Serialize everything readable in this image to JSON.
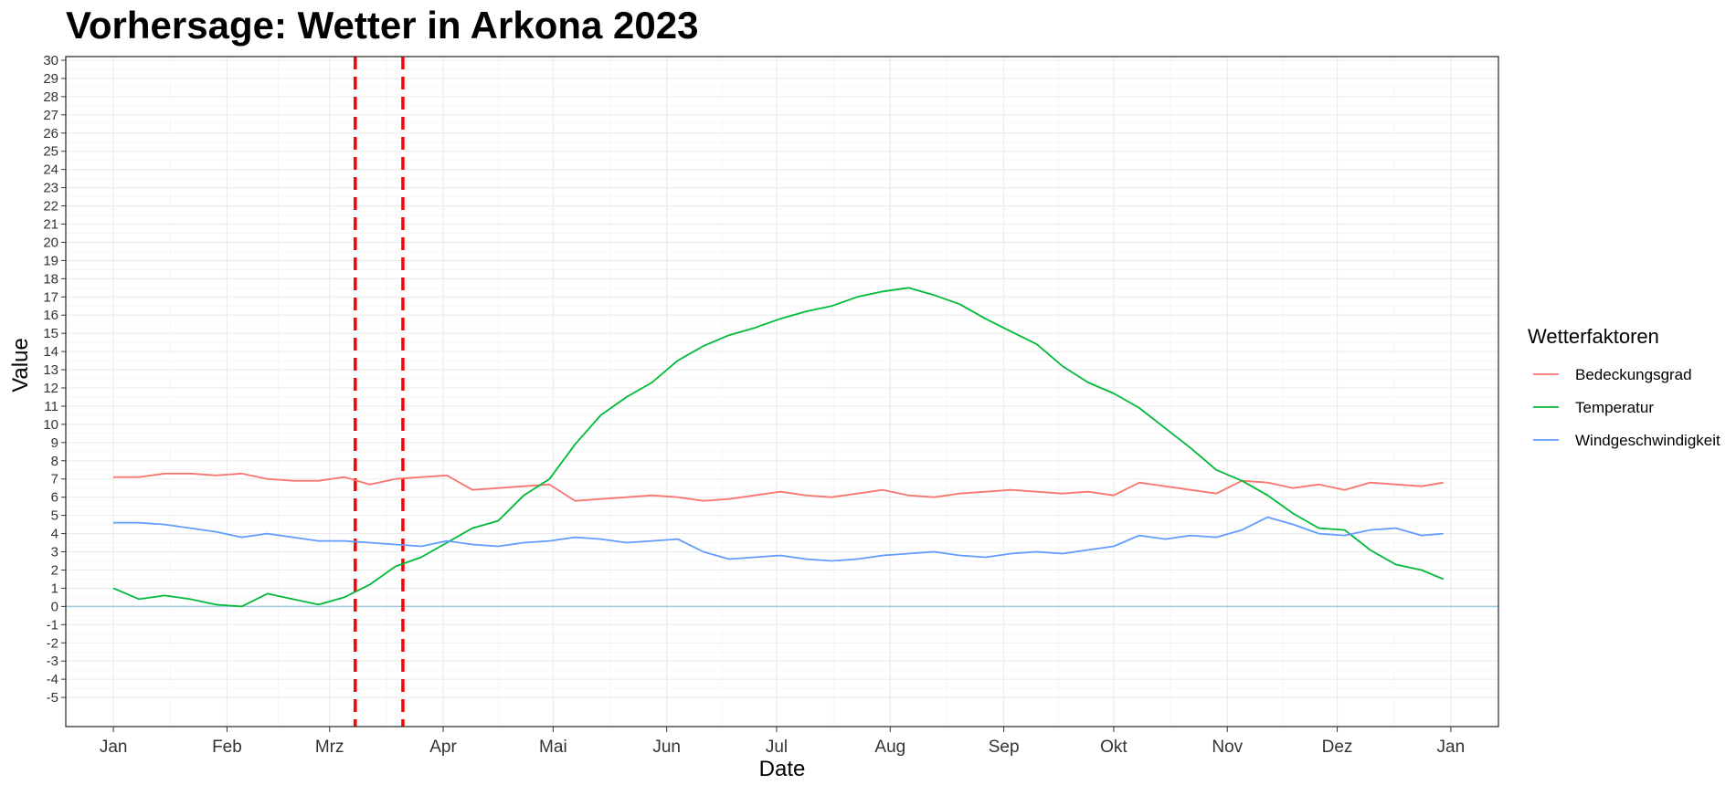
{
  "chart_data": {
    "type": "line",
    "title": "Vorhersage: Wetter in Arkona 2023",
    "xlabel": "Date",
    "ylabel": "Value",
    "x_tick_labels": [
      "Jan",
      "Feb",
      "Mrz",
      "Apr",
      "Mai",
      "Jun",
      "Jul",
      "Aug",
      "Sep",
      "Okt",
      "Nov",
      "Dez",
      "Jan"
    ],
    "x_tick_dates": [
      "2023-01-01",
      "2023-02-01",
      "2023-03-01",
      "2023-04-01",
      "2023-05-01",
      "2023-06-01",
      "2023-07-01",
      "2023-08-01",
      "2023-09-01",
      "2023-10-01",
      "2023-11-01",
      "2023-12-01",
      "2024-01-01"
    ],
    "xlim": [
      "2022-12-19",
      "2024-01-14"
    ],
    "ylim": [
      -6.6,
      30.2
    ],
    "y_ticks": [
      -5,
      -4,
      -3,
      -2,
      -1,
      0,
      1,
      2,
      3,
      4,
      5,
      6,
      7,
      8,
      9,
      10,
      11,
      12,
      13,
      14,
      15,
      16,
      17,
      18,
      19,
      20,
      21,
      22,
      23,
      24,
      25,
      26,
      27,
      28,
      29,
      30
    ],
    "grid": true,
    "legend_title": "Wetterfaktoren",
    "legend_position": "right",
    "reference_lines": {
      "horizontal_y": 0,
      "horizontal_color": "#9ecae1",
      "vertical_dates": [
        "2023-03-08",
        "2023-03-21"
      ],
      "vertical_color": "#ff0000",
      "vertical_style": "dashed"
    },
    "x_dates": [
      "2023-01-01",
      "2023-01-08",
      "2023-01-15",
      "2023-01-22",
      "2023-01-29",
      "2023-02-05",
      "2023-02-12",
      "2023-02-19",
      "2023-02-26",
      "2023-03-05",
      "2023-03-12",
      "2023-03-19",
      "2023-03-26",
      "2023-04-02",
      "2023-04-09",
      "2023-04-16",
      "2023-04-23",
      "2023-04-30",
      "2023-05-07",
      "2023-05-14",
      "2023-05-21",
      "2023-05-28",
      "2023-06-04",
      "2023-06-11",
      "2023-06-18",
      "2023-06-25",
      "2023-07-02",
      "2023-07-09",
      "2023-07-16",
      "2023-07-23",
      "2023-07-30",
      "2023-08-06",
      "2023-08-13",
      "2023-08-20",
      "2023-08-27",
      "2023-09-03",
      "2023-09-10",
      "2023-09-17",
      "2023-09-24",
      "2023-10-01",
      "2023-10-08",
      "2023-10-15",
      "2023-10-22",
      "2023-10-29",
      "2023-11-05",
      "2023-11-12",
      "2023-11-19",
      "2023-11-26",
      "2023-12-03",
      "2023-12-10",
      "2023-12-17",
      "2023-12-24",
      "2023-12-30"
    ],
    "series": [
      {
        "name": "Bedeckungsgrad",
        "color": "#F8766D",
        "values": [
          7.1,
          7.1,
          7.3,
          7.3,
          7.2,
          7.3,
          7.0,
          6.9,
          6.9,
          7.1,
          6.7,
          7.0,
          7.1,
          7.2,
          6.4,
          6.5,
          6.6,
          6.7,
          5.8,
          5.9,
          6.0,
          6.1,
          6.0,
          5.8,
          5.9,
          6.1,
          6.3,
          6.1,
          6.0,
          6.2,
          6.4,
          6.1,
          6.0,
          6.2,
          6.3,
          6.4,
          6.3,
          6.2,
          6.3,
          6.1,
          6.8,
          6.6,
          6.4,
          6.2,
          6.9,
          6.8,
          6.5,
          6.7,
          6.4,
          6.8,
          6.7,
          6.6,
          6.8
        ]
      },
      {
        "name": "Temperatur",
        "color": "#00BA38",
        "values": [
          1.0,
          0.4,
          0.6,
          0.4,
          0.1,
          0.0,
          0.7,
          0.4,
          0.1,
          0.5,
          1.2,
          2.2,
          2.7,
          3.5,
          4.3,
          4.7,
          6.1,
          7.0,
          8.9,
          10.5,
          11.5,
          12.3,
          13.5,
          14.3,
          14.9,
          15.3,
          15.8,
          16.2,
          16.5,
          17.0,
          17.3,
          17.5,
          17.1,
          16.6,
          15.8,
          15.1,
          14.4,
          13.2,
          12.3,
          11.7,
          10.9,
          9.8,
          8.7,
          7.5,
          6.9,
          6.1,
          5.1,
          4.3,
          4.2,
          3.1,
          2.3,
          2.0,
          1.5
        ]
      },
      {
        "name": "Windgeschwindigkeit",
        "color": "#619CFF",
        "values": [
          4.6,
          4.6,
          4.5,
          4.3,
          4.1,
          3.8,
          4.0,
          3.8,
          3.6,
          3.6,
          3.5,
          3.4,
          3.3,
          3.6,
          3.4,
          3.3,
          3.5,
          3.6,
          3.8,
          3.7,
          3.5,
          3.6,
          3.7,
          3.0,
          2.6,
          2.7,
          2.8,
          2.6,
          2.5,
          2.6,
          2.8,
          2.9,
          3.0,
          2.8,
          2.7,
          2.9,
          3.0,
          2.9,
          3.1,
          3.3,
          3.9,
          3.7,
          3.9,
          3.8,
          4.2,
          4.9,
          4.5,
          4.0,
          3.9,
          4.2,
          4.3,
          3.9,
          4.0
        ]
      }
    ]
  }
}
